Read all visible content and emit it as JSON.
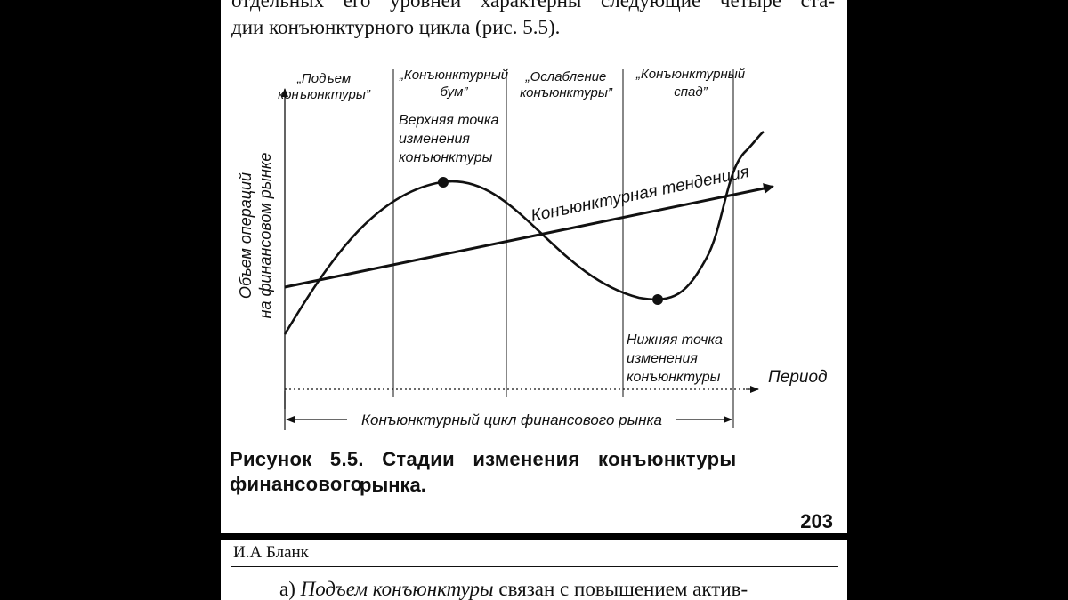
{
  "top_text": {
    "line1": "отдельных его уровней характерны следующие четыре ста-",
    "line2": "дии конъюнктурного цикла (рис. 5.5)."
  },
  "diagram": {
    "stages": [
      {
        "line1": "„Подъем",
        "line2": "конъюнктуры”"
      },
      {
        "line1": "„Конъюнктурный",
        "line2": "бум”"
      },
      {
        "line1": "„Ослабление",
        "line2": "конъюнктуры”"
      },
      {
        "line1": "„Конъюнктурный",
        "line2": "спад”"
      }
    ],
    "y_axis_label_1": "Объем операций",
    "y_axis_label_2": "на финансовом рынке",
    "x_axis_label": "Период",
    "upper_point": [
      "Верхняя точка",
      "изменения",
      "конъюнктуры"
    ],
    "lower_point": [
      "Нижняя точка",
      "изменения",
      "конъюнктуры"
    ],
    "trend_label": "Конъюнктурная тенденция",
    "cycle_label": "Конъюнктурный цикл финансового рынка"
  },
  "caption": {
    "line1": "Рисунок 5.5. Стадии изменения конъюнктуры финансового",
    "line2": "рынка."
  },
  "page_number": "203",
  "running_header": "И.А Бланк",
  "bottom_text": {
    "prefix": "а) ",
    "italic": "Подъем конъюнктуры",
    "suffix": " связан с повышением актив-"
  }
}
